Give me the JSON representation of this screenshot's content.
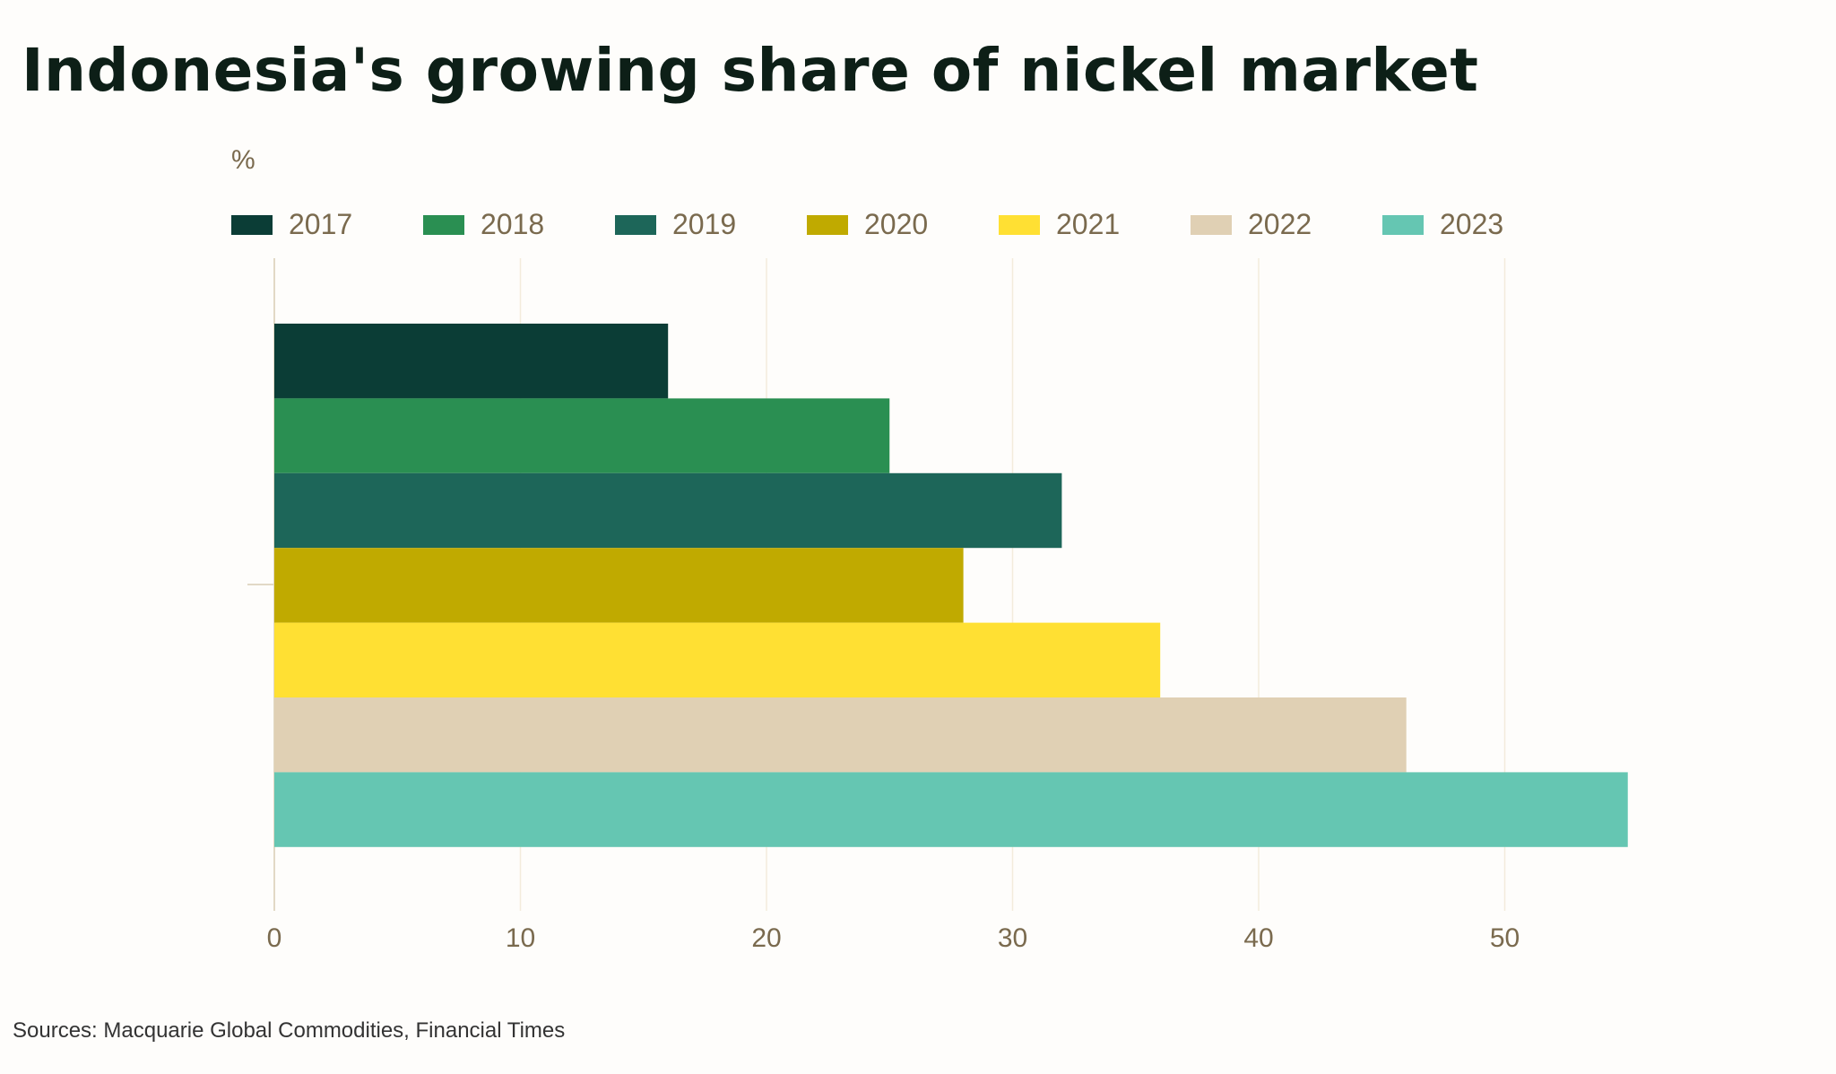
{
  "title": "Indonesia's growing share of nickel market",
  "unit_label": "%",
  "source": "Sources: Macquarie Global Commodities, Financial Times",
  "chart_data": {
    "type": "bar",
    "orientation": "horizontal",
    "ylabel": "%",
    "xlim": [
      0,
      55
    ],
    "x_ticks": [
      0,
      10,
      20,
      30,
      40,
      50
    ],
    "x_tick_labels": [
      "0",
      "10",
      "20",
      "30",
      "40",
      "50"
    ],
    "grid": true,
    "legend_position": "top",
    "series": [
      {
        "name": "2017",
        "value": 16,
        "color": "#0b3d36"
      },
      {
        "name": "2018",
        "value": 25,
        "color": "#2a8f52"
      },
      {
        "name": "2019",
        "value": 32,
        "color": "#1d6659"
      },
      {
        "name": "2020",
        "value": 28,
        "color": "#c0aa00"
      },
      {
        "name": "2021",
        "value": 36,
        "color": "#ffe033"
      },
      {
        "name": "2022",
        "value": 46,
        "color": "#e0d0b4"
      },
      {
        "name": "2023",
        "value": 55,
        "color": "#65c6b2"
      }
    ]
  }
}
